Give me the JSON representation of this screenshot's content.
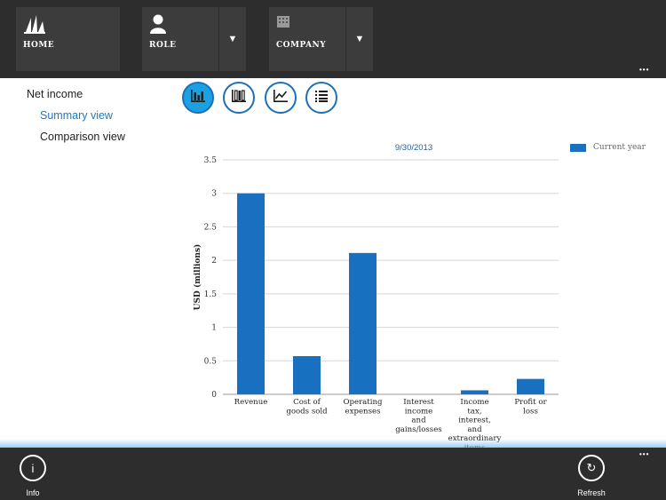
{
  "topbar": {
    "home_label": "HOME",
    "role_label": "ROLE",
    "company_label": "COMPANY",
    "dropdown_glyph": "▼",
    "more_glyph": "•••"
  },
  "nav": {
    "items": [
      {
        "label": "Net income"
      },
      {
        "label": "Summary view"
      },
      {
        "label": "Comparison view"
      }
    ]
  },
  "view_buttons": [
    {
      "icon": "bar-chart-icon",
      "active": true
    },
    {
      "icon": "column-chart-icon",
      "active": false
    },
    {
      "icon": "line-chart-icon",
      "active": false
    },
    {
      "icon": "list-icon",
      "active": false
    }
  ],
  "chart_data": {
    "type": "bar",
    "title": "9/30/2013",
    "ylabel": "USD (millions)",
    "xlabel": "",
    "ylim": [
      0,
      3.5
    ],
    "yticks": [
      0,
      0.5,
      1,
      1.5,
      2,
      2.5,
      3,
      3.5
    ],
    "ytick_labels": [
      "0",
      "0.5",
      "1",
      "1.5",
      "2",
      "2.5",
      "3",
      "3.5"
    ],
    "grid": true,
    "legend_position": "top-right",
    "series": [
      {
        "name": "Current year",
        "color": "#1a70c0",
        "values": [
          3.0,
          0.57,
          2.11,
          0.0,
          0.06,
          0.23
        ]
      }
    ],
    "categories": [
      [
        "Revenue"
      ],
      [
        "Cost of",
        "goods sold"
      ],
      [
        "Operating",
        "expenses"
      ],
      [
        "Interest",
        "income",
        "and",
        "gains/losses"
      ],
      [
        "Income",
        "tax,",
        "interest,",
        "and",
        "extraordinary",
        "items"
      ],
      [
        "Profit or",
        "loss"
      ]
    ]
  },
  "bottombar": {
    "info_label": "Info",
    "info_glyph": "i",
    "refresh_label": "Refresh",
    "refresh_glyph": "↻",
    "more_glyph": "•••"
  }
}
